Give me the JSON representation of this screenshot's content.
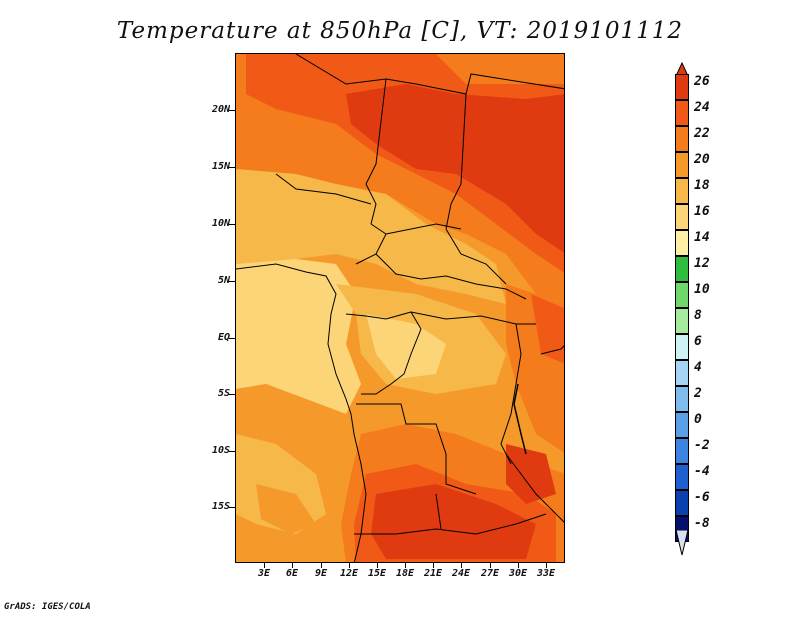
{
  "title": "Temperature at 850hPa [C], VT: 2019101112",
  "credit": "GrADS: IGES/COLA",
  "map": {
    "lat_labels": [
      "20N",
      "15N",
      "10N",
      "5N",
      "EQ",
      "5S",
      "10S",
      "15S"
    ],
    "lon_labels": [
      "3E",
      "6E",
      "9E",
      "12E",
      "15E",
      "18E",
      "21E",
      "24E",
      "27E",
      "30E",
      "33E"
    ]
  },
  "colorbar": {
    "levels": [
      "26",
      "24",
      "22",
      "20",
      "18",
      "16",
      "14",
      "12",
      "10",
      "8",
      "6",
      "4",
      "2",
      "0",
      "-2",
      "-4",
      "-6",
      "-8"
    ],
    "colors": [
      "#e03a10",
      "#f05a16",
      "#f47c1c",
      "#f59a2a",
      "#f7b84a",
      "#fbd577",
      "#fdefa6",
      "#2fbc3f",
      "#6ed86b",
      "#a6eb9d",
      "#cdf3f5",
      "#a6d4f5",
      "#7fbcee",
      "#5aa0e8",
      "#3b84e0",
      "#1e60d0",
      "#0a40b0",
      "#050f6e"
    ],
    "lower_cap_color": "#dbe0f0"
  }
}
